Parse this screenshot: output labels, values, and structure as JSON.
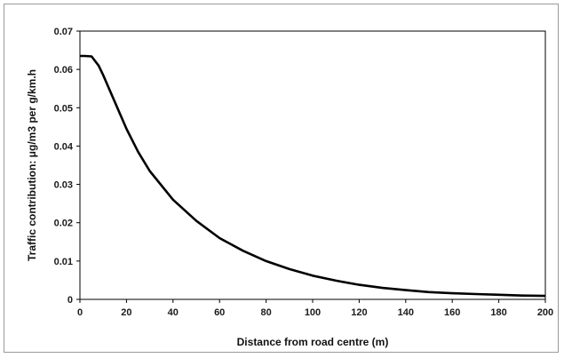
{
  "chart_data": {
    "type": "line",
    "xlabel": "Distance from road centre (m)",
    "ylabel": "Traffic contribution:   μg/m3 per g/km.h",
    "xlim": [
      0,
      200
    ],
    "ylim": [
      0,
      0.07
    ],
    "x_ticks": [
      "0",
      "20",
      "40",
      "60",
      "80",
      "100",
      "120",
      "140",
      "160",
      "180",
      "200"
    ],
    "y_ticks": [
      "0",
      "0.01",
      "0.02",
      "0.03",
      "0.04",
      "0.05",
      "0.06",
      "0.07"
    ],
    "grid": false,
    "legend": "none",
    "line_color": "#000000",
    "series": [
      {
        "x": [
          0,
          2,
          5,
          8,
          10,
          15,
          20,
          25,
          30,
          40,
          50,
          60,
          70,
          80,
          90,
          100,
          110,
          120,
          130,
          140,
          150,
          160,
          170,
          180,
          190,
          200
        ],
        "values": [
          0.0635,
          0.0635,
          0.0634,
          0.061,
          0.0585,
          0.0515,
          0.0445,
          0.0385,
          0.0335,
          0.026,
          0.0205,
          0.016,
          0.0127,
          0.01,
          0.0079,
          0.0062,
          0.0049,
          0.0038,
          0.003,
          0.0024,
          0.0019,
          0.0016,
          0.0014,
          0.0012,
          0.001,
          0.0009
        ]
      }
    ]
  }
}
